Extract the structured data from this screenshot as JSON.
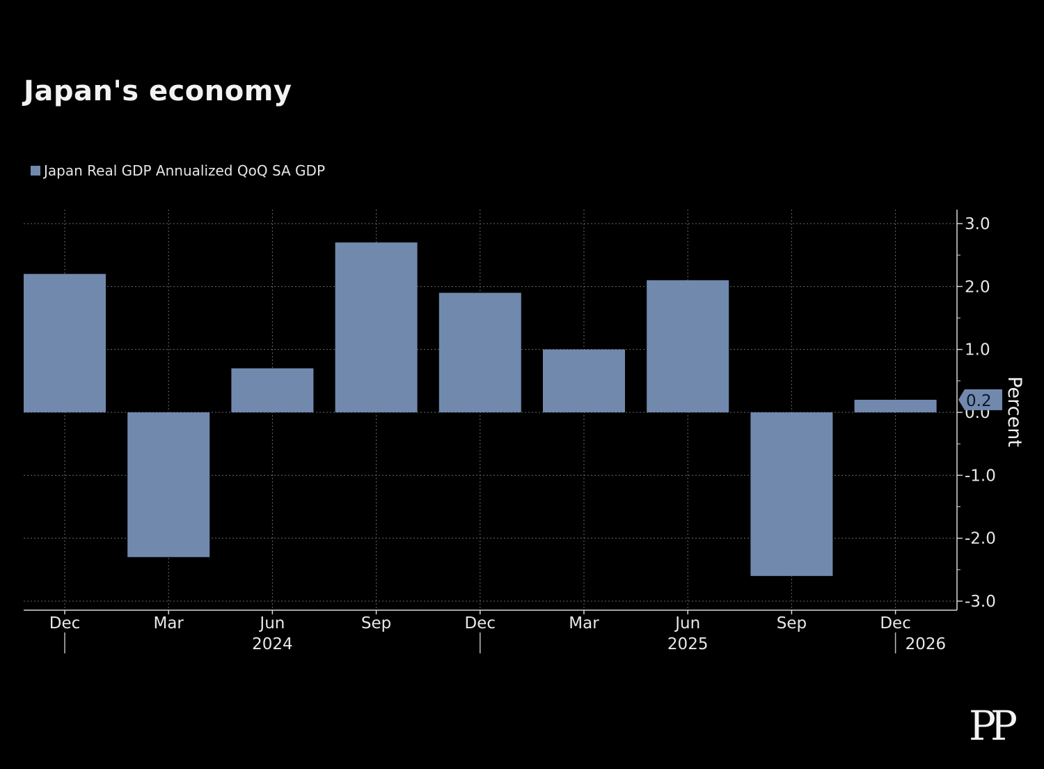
{
  "chart_data": {
    "type": "bar",
    "title": "Japan's economy",
    "series": [
      {
        "name": "Japan Real GDP Annualized QoQ SA GDP",
        "color": "#7189ad",
        "values": [
          2.2,
          -2.3,
          0.7,
          2.7,
          1.9,
          1.0,
          2.1,
          -2.6,
          0.2
        ]
      }
    ],
    "categories": [
      "Dec",
      "Mar",
      "Jun",
      "Sep",
      "Dec",
      "Mar",
      "Jun",
      "Sep",
      "Dec"
    ],
    "year_labels": [
      {
        "label": "2024",
        "category_index": 2
      },
      {
        "label": "2025",
        "category_index": 6
      },
      {
        "label": "2026",
        "category_index": 8
      }
    ],
    "ylabel": "Percent",
    "ylim": [
      -3.0,
      3.0
    ],
    "yticks": [
      "3.0",
      "2.0",
      "1.0",
      "0.0",
      "-1.0",
      "-2.0",
      "-3.0"
    ],
    "last_value_label": "0.2",
    "grid": true,
    "legend": "top-left"
  },
  "watermark": "PP"
}
